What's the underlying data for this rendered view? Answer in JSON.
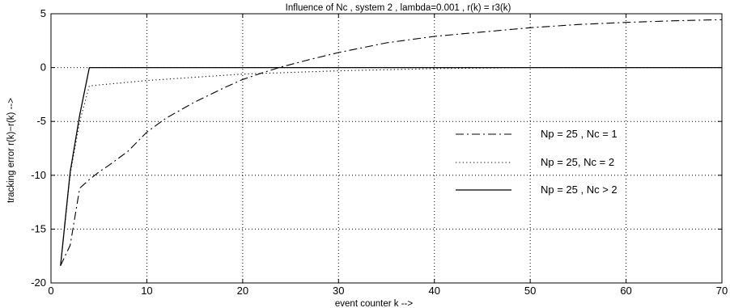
{
  "chart_data": {
    "type": "line",
    "title": "Influence of Nc , system 2 , lambda=0.001 , r(k) = r3(k)",
    "xlabel": "event counter k -->",
    "ylabel": "tracking error r(k)−r(k) -->",
    "xlim": [
      0,
      70
    ],
    "ylim": [
      -20,
      5
    ],
    "xticks": [
      0,
      10,
      20,
      30,
      40,
      50,
      60,
      70
    ],
    "yticks": [
      -20,
      -15,
      -10,
      -5,
      0,
      5
    ],
    "grid": true,
    "legend_position": "right",
    "series": [
      {
        "name": "Np = 25 , Nc = 1",
        "style": "dashdot",
        "color": "#000000",
        "x": [
          1,
          2,
          3,
          4,
          5,
          6,
          8,
          10,
          12,
          15,
          18,
          20,
          22,
          24,
          27,
          30,
          35,
          40,
          45,
          50,
          55,
          60,
          65,
          70
        ],
        "y": [
          -18.4,
          -16.5,
          -11.2,
          -10.4,
          -9.7,
          -9.1,
          -7.8,
          -6.0,
          -4.7,
          -3.2,
          -1.9,
          -1.1,
          -0.5,
          0.05,
          0.75,
          1.4,
          2.3,
          2.9,
          3.3,
          3.7,
          4.0,
          4.2,
          4.35,
          4.45
        ]
      },
      {
        "name": "Np = 25, Nc = 2",
        "style": "dotted",
        "color": "#000000",
        "x": [
          1,
          2,
          3,
          4,
          10,
          20,
          30,
          40,
          50,
          60,
          70
        ],
        "y": [
          -18.4,
          -9.9,
          -5.0,
          -1.7,
          -1.2,
          -0.6,
          -0.3,
          -0.1,
          0,
          0,
          0
        ]
      },
      {
        "name": "Np = 25 , Nc > 2",
        "style": "solid",
        "color": "#000000",
        "x": [
          1,
          2,
          3,
          4,
          5,
          10,
          20,
          30,
          40,
          50,
          60,
          70
        ],
        "y": [
          -18.4,
          -9.7,
          -4.4,
          0,
          0,
          0,
          0,
          0,
          0,
          0,
          0,
          0
        ]
      }
    ]
  }
}
